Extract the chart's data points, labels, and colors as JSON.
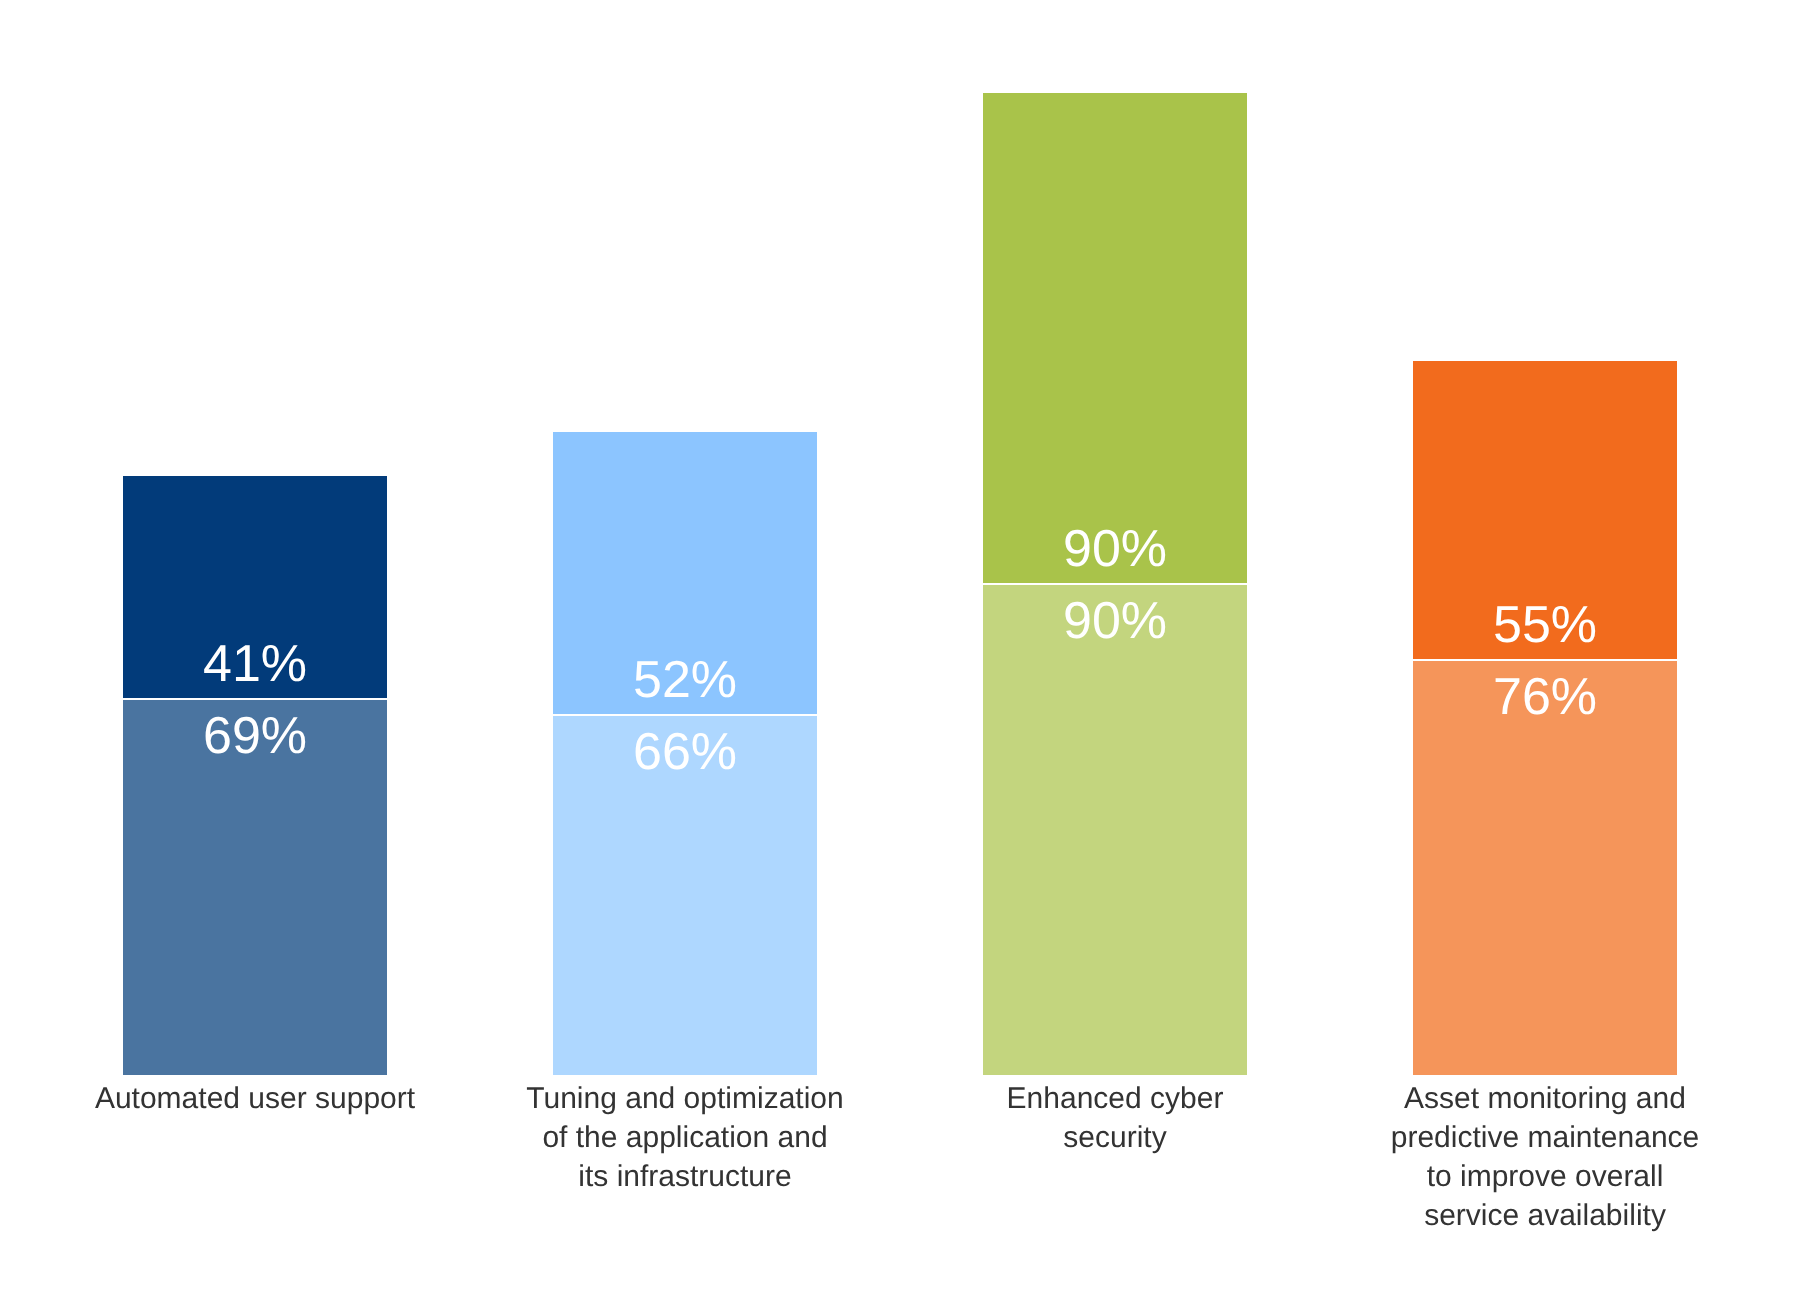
{
  "chart_data": {
    "type": "bar",
    "stacked": true,
    "tick_labels": "x",
    "categories": [
      "Automated user support",
      "Tuning and optimization\nof the application and\nits infrastructure",
      "Enhanced cyber\nsecurity",
      "Asset monitoring and\npredictive maintenance\nto improve overall\nservice availability"
    ],
    "series": [
      {
        "values": [
          69,
          66,
          90,
          76
        ],
        "value_labels": [
          "69%",
          "66%",
          "90%",
          "76%"
        ],
        "colors": [
          "#4a74a0",
          "#aed7ff",
          "#c3d57e",
          "#f5955a"
        ]
      },
      {
        "values": [
          41,
          52,
          90,
          55
        ],
        "value_labels": [
          "41%",
          "52%",
          "90%",
          "55%"
        ],
        "colors": [
          "#023b7a",
          "#8cc5ff",
          "#a9c34a",
          "#f26b1d"
        ]
      }
    ]
  }
}
